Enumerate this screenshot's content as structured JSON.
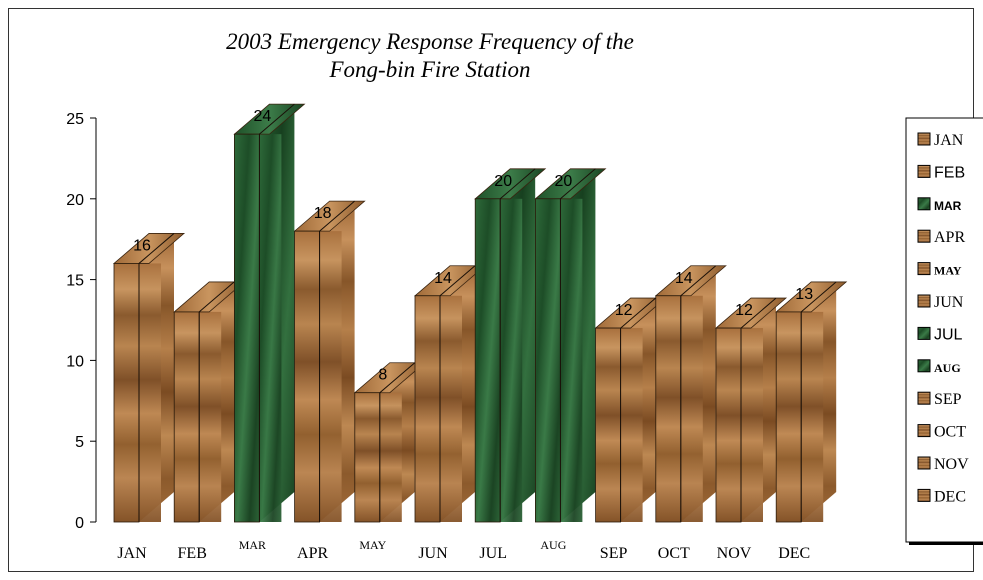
{
  "chart_data": {
    "type": "bar",
    "title_line1": "2003 Emergency Response Frequency of the",
    "title_line2": "Fong-bin Fire Station",
    "xlabel": "",
    "ylabel": "",
    "ylim": [
      0,
      25
    ],
    "yticks": [
      "0",
      "5",
      "10",
      "15",
      "20",
      "25"
    ],
    "categories": [
      "JAN",
      "FEB",
      "MAR",
      "APR",
      "MAY",
      "JUN",
      "JUL",
      "AUG",
      "SEP",
      "OCT",
      "NOV",
      "DEC"
    ],
    "values": [
      16,
      13,
      24,
      18,
      8,
      14,
      20,
      20,
      12,
      14,
      12,
      13
    ],
    "data_labels": [
      "16",
      "",
      "24",
      "18",
      "8",
      "14",
      "20",
      "20",
      "12",
      "14",
      "12",
      "13"
    ],
    "bar_texture": [
      "wood",
      "wood",
      "marble",
      "wood",
      "wood",
      "wood",
      "marble",
      "marble",
      "wood",
      "wood",
      "wood",
      "wood"
    ],
    "legend": {
      "placement": "right",
      "entries": [
        "JAN",
        "FEB",
        "MAR",
        "APR",
        "MAY",
        "JUN",
        "JUL",
        "AUG",
        "SEP",
        "OCT",
        "NOV",
        "DEC"
      ]
    },
    "grid": false,
    "style": "3d-bars"
  },
  "colors": {
    "wood_light": "#b07a45",
    "wood_dark": "#7a4a22",
    "marble_light": "#2f6b3c",
    "marble_dark": "#153d1d",
    "axis": "#000000"
  }
}
